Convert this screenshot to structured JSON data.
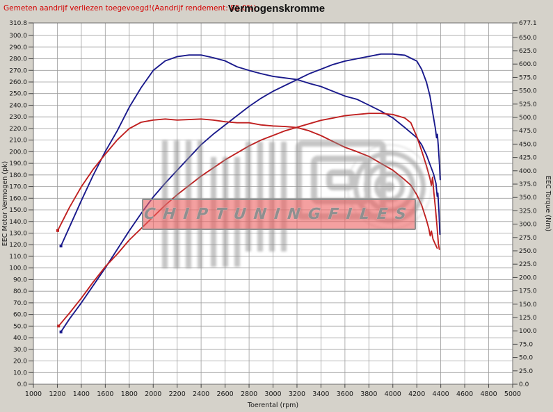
{
  "header": {
    "title": "Vermogenskromme",
    "loss_note": "Gemeten aandrijf verliezen toegevoegd!(Aandrijf rendement: 85.0%)"
  },
  "watermark": {
    "band_text": "CHIPTUNINGFILES"
  },
  "colors": {
    "tuned_curve": "#1a1a8c",
    "original_curve": "#c02020",
    "note_red": "#d40000",
    "grid": "#9c9c9c",
    "plot_border": "#6e6e6e",
    "window_bg": "#d5d2ca",
    "plot_bg": "#ffffff"
  },
  "chart_data": {
    "type": "line",
    "title": "Vermogenskromme",
    "xlabel": "Toerental (rpm)",
    "ylabel_left": "EEC Motor Vermogen (pk)",
    "ylabel_right": "EEC Torque (Nm)",
    "grid": true,
    "legend": "none",
    "x_range": [
      1000,
      5000
    ],
    "y_left_range": [
      0,
      310.8
    ],
    "y_right_range": [
      0,
      677.1
    ],
    "x_ticks": [
      1000,
      1200,
      1400,
      1600,
      1800,
      2000,
      2200,
      2400,
      2600,
      2800,
      3000,
      3200,
      3400,
      3600,
      3800,
      4000,
      4200,
      4400,
      4600,
      4800,
      5000
    ],
    "y_left_ticks": [
      0,
      10,
      20,
      30,
      40,
      50,
      60,
      70,
      80,
      90,
      100,
      110,
      120,
      130,
      140,
      150,
      160,
      170,
      180,
      190,
      200,
      210,
      220,
      230,
      240,
      250,
      260,
      270,
      280,
      290,
      300,
      310.8
    ],
    "y_right_ticks": [
      0,
      25,
      50,
      75,
      100,
      125,
      150,
      175,
      200,
      225,
      250,
      275,
      300,
      325,
      350,
      375,
      400,
      425,
      450,
      475,
      500,
      525,
      550,
      575,
      600,
      625,
      650,
      677.1
    ],
    "series": [
      {
        "name": "torque-tuned-blue",
        "axis": "right",
        "color": "#1a1a8c",
        "unit": "Nm",
        "points": [
          [
            1230,
            259
          ],
          [
            1300,
            294
          ],
          [
            1400,
            344
          ],
          [
            1500,
            392
          ],
          [
            1600,
            436
          ],
          [
            1700,
            475
          ],
          [
            1800,
            519
          ],
          [
            1900,
            556
          ],
          [
            2000,
            588
          ],
          [
            2100,
            606
          ],
          [
            2200,
            614
          ],
          [
            2300,
            617
          ],
          [
            2400,
            617
          ],
          [
            2500,
            612
          ],
          [
            2600,
            606
          ],
          [
            2700,
            595
          ],
          [
            2800,
            588
          ],
          [
            2900,
            582
          ],
          [
            3000,
            577
          ],
          [
            3100,
            574
          ],
          [
            3200,
            571
          ],
          [
            3300,
            564
          ],
          [
            3400,
            558
          ],
          [
            3500,
            549
          ],
          [
            3600,
            540
          ],
          [
            3700,
            534
          ],
          [
            3800,
            523
          ],
          [
            3900,
            512
          ],
          [
            4000,
            499
          ],
          [
            4100,
            481
          ],
          [
            4200,
            462
          ],
          [
            4240,
            449
          ],
          [
            4280,
            430
          ],
          [
            4310,
            412
          ],
          [
            4340,
            394
          ],
          [
            4360,
            376
          ],
          [
            4370,
            352
          ],
          [
            4376,
            358
          ],
          [
            4385,
            322
          ],
          [
            4393,
            281
          ]
        ]
      },
      {
        "name": "power-tuned-blue",
        "axis": "left",
        "color": "#1a1a8c",
        "unit": "pk",
        "points": [
          [
            1230,
            45
          ],
          [
            1300,
            56
          ],
          [
            1400,
            70
          ],
          [
            1500,
            85
          ],
          [
            1600,
            100
          ],
          [
            1700,
            116
          ],
          [
            1800,
            132
          ],
          [
            1900,
            147
          ],
          [
            2000,
            161
          ],
          [
            2100,
            173
          ],
          [
            2200,
            184
          ],
          [
            2300,
            195
          ],
          [
            2400,
            206
          ],
          [
            2500,
            215
          ],
          [
            2600,
            223
          ],
          [
            2700,
            231
          ],
          [
            2800,
            239
          ],
          [
            2900,
            246
          ],
          [
            3000,
            252
          ],
          [
            3100,
            257
          ],
          [
            3200,
            262
          ],
          [
            3300,
            267
          ],
          [
            3400,
            271
          ],
          [
            3500,
            275
          ],
          [
            3600,
            278
          ],
          [
            3700,
            280
          ],
          [
            3800,
            282
          ],
          [
            3900,
            284
          ],
          [
            4000,
            284
          ],
          [
            4100,
            283
          ],
          [
            4200,
            278
          ],
          [
            4240,
            271
          ],
          [
            4280,
            260
          ],
          [
            4310,
            248
          ],
          [
            4335,
            232
          ],
          [
            4355,
            220
          ],
          [
            4365,
            212
          ],
          [
            4372,
            215
          ],
          [
            4380,
            204
          ],
          [
            4390,
            188
          ],
          [
            4395,
            176
          ]
        ]
      },
      {
        "name": "torque-original-red",
        "axis": "right",
        "color": "#c02020",
        "unit": "Nm",
        "points": [
          [
            1203,
            288
          ],
          [
            1300,
            331
          ],
          [
            1400,
            370
          ],
          [
            1500,
            403
          ],
          [
            1600,
            431
          ],
          [
            1700,
            458
          ],
          [
            1800,
            479
          ],
          [
            1900,
            491
          ],
          [
            2000,
            495
          ],
          [
            2100,
            497
          ],
          [
            2200,
            495
          ],
          [
            2300,
            496
          ],
          [
            2400,
            497
          ],
          [
            2500,
            495
          ],
          [
            2600,
            492
          ],
          [
            2700,
            490
          ],
          [
            2800,
            490
          ],
          [
            2900,
            486
          ],
          [
            3000,
            484
          ],
          [
            3100,
            483
          ],
          [
            3200,
            481
          ],
          [
            3300,
            475
          ],
          [
            3400,
            466
          ],
          [
            3500,
            455
          ],
          [
            3600,
            444
          ],
          [
            3700,
            436
          ],
          [
            3800,
            427
          ],
          [
            3900,
            414
          ],
          [
            4000,
            401
          ],
          [
            4100,
            383
          ],
          [
            4150,
            373
          ],
          [
            4200,
            355
          ],
          [
            4240,
            336
          ],
          [
            4280,
            308
          ],
          [
            4300,
            292
          ],
          [
            4312,
            278
          ],
          [
            4322,
            287
          ],
          [
            4335,
            272
          ],
          [
            4355,
            262
          ],
          [
            4370,
            255
          ]
        ]
      },
      {
        "name": "power-original-red",
        "axis": "left",
        "color": "#c02020",
        "unit": "pk",
        "points": [
          [
            1210,
            50
          ],
          [
            1300,
            61
          ],
          [
            1400,
            74
          ],
          [
            1500,
            88
          ],
          [
            1600,
            101
          ],
          [
            1700,
            112
          ],
          [
            1800,
            124
          ],
          [
            1900,
            134
          ],
          [
            2000,
            144
          ],
          [
            2100,
            154
          ],
          [
            2200,
            163
          ],
          [
            2300,
            171
          ],
          [
            2400,
            179
          ],
          [
            2500,
            186
          ],
          [
            2600,
            193
          ],
          [
            2700,
            199
          ],
          [
            2800,
            205
          ],
          [
            2900,
            210
          ],
          [
            3000,
            214
          ],
          [
            3100,
            218
          ],
          [
            3200,
            221
          ],
          [
            3300,
            224
          ],
          [
            3400,
            227
          ],
          [
            3500,
            229
          ],
          [
            3600,
            231
          ],
          [
            3700,
            232
          ],
          [
            3800,
            233
          ],
          [
            3900,
            233
          ],
          [
            4000,
            232
          ],
          [
            4100,
            229
          ],
          [
            4150,
            225
          ],
          [
            4200,
            213
          ],
          [
            4240,
            201
          ],
          [
            4280,
            188
          ],
          [
            4310,
            177
          ],
          [
            4322,
            171
          ],
          [
            4332,
            178
          ],
          [
            4342,
            165
          ],
          [
            4355,
            152
          ],
          [
            4368,
            137
          ],
          [
            4380,
            121
          ],
          [
            4388,
            116
          ]
        ]
      }
    ]
  }
}
